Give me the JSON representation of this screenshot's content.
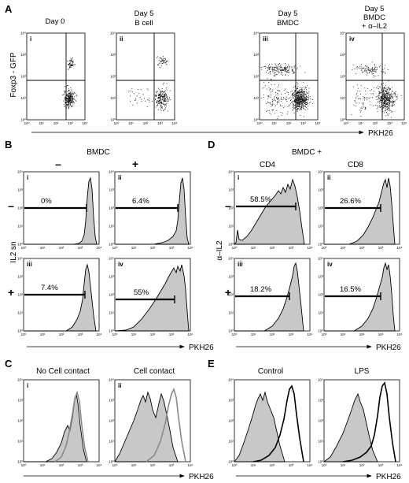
{
  "panels": [
    {
      "id": "A",
      "label": "A"
    },
    {
      "id": "B",
      "label": "B"
    },
    {
      "id": "C",
      "label": "C"
    },
    {
      "id": "D",
      "label": "D"
    },
    {
      "id": "E",
      "label": "E"
    }
  ],
  "panel_a": {
    "y_axis_label": "Foxp3 - GFP",
    "x_axis_label": "PKH26",
    "plots": [
      {
        "roman": "i",
        "title_lines": [
          "Day 0"
        ]
      },
      {
        "roman": "ii",
        "title_lines": [
          "Day 5",
          "B cell"
        ]
      },
      {
        "roman": "iii",
        "title_lines": [
          "Day 5",
          "BMDC"
        ]
      },
      {
        "roman": "iv",
        "title_lines": [
          "Day 5",
          "BMDC",
          "+ α–IL2"
        ]
      }
    ]
  },
  "panel_b": {
    "title": "BMDC",
    "col_signs": [
      "–",
      "+"
    ],
    "row_signs": [
      "–",
      "+"
    ],
    "y_axis_label": "IL2 sn",
    "x_axis_label": "PKH26",
    "plots": [
      {
        "roman": "i",
        "percent": "0%"
      },
      {
        "roman": "ii",
        "percent": "6.4%"
      },
      {
        "roman": "iii",
        "percent": "7.4%"
      },
      {
        "roman": "iv",
        "percent": "55%"
      }
    ]
  },
  "panel_c": {
    "x_axis_label": "PKH26",
    "plots": [
      {
        "roman": "i",
        "title": "No Cell contact"
      },
      {
        "roman": "ii",
        "title": "Cell contact"
      }
    ]
  },
  "panel_d": {
    "title": "BMDC +",
    "col_labels": [
      "CD4",
      "CD8"
    ],
    "row_signs": [
      "–",
      "+"
    ],
    "y_axis_label": "α–IL2",
    "x_axis_label": "PKH26",
    "plots": [
      {
        "roman": "i",
        "percent": "58.5%"
      },
      {
        "roman": "ii",
        "percent": "26.6%"
      },
      {
        "roman": "iii",
        "percent": "18.2%"
      },
      {
        "roman": "iv",
        "percent": "16.5%"
      }
    ]
  },
  "panel_e": {
    "x_axis_label": "PKH26",
    "plots": [
      {
        "title": "Control"
      },
      {
        "title": "LPS"
      }
    ]
  },
  "axis": {
    "log_x_ticks": [
      "10⁰",
      "10¹",
      "10²",
      "10³",
      "10⁴"
    ],
    "log_y_ticks": [
      "10⁰",
      "10¹",
      "10²",
      "10³",
      "10⁴"
    ]
  },
  "colors": {
    "fill": "#c8c8c8",
    "line": "#000000",
    "secondary_line": "#8a8a8a"
  }
}
